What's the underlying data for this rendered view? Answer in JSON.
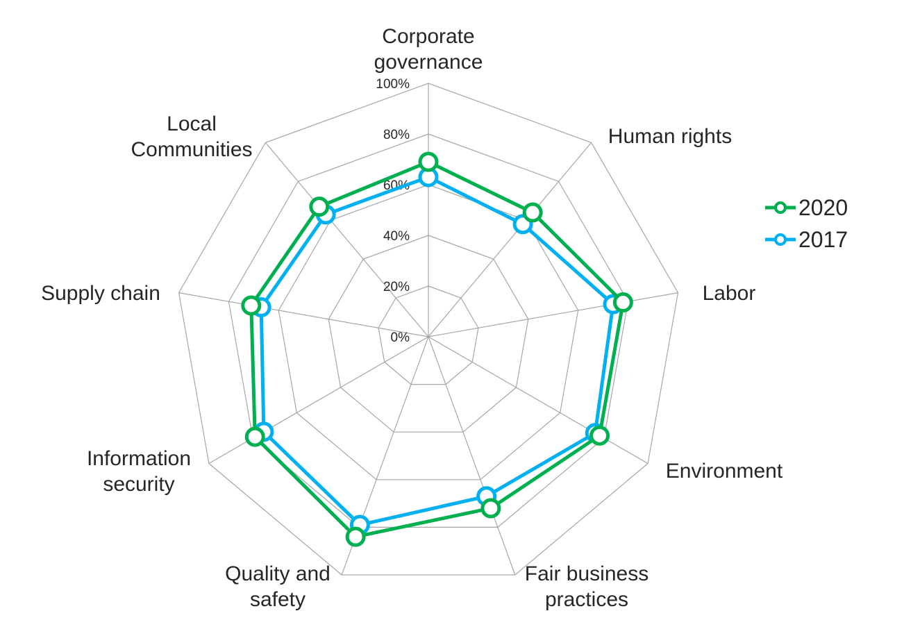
{
  "chart_data": {
    "type": "radar",
    "title": "",
    "categories": [
      "Corporate governance",
      "Human rights",
      "Labor",
      "Environment",
      "Fair business practices",
      "Quality and safety",
      "Information security",
      "Supply chain",
      "Local Communities"
    ],
    "category_label_lines": [
      [
        "Corporate",
        "governance"
      ],
      [
        "Human rights"
      ],
      [
        "Labor"
      ],
      [
        "Environment"
      ],
      [
        "Fair business",
        "practices"
      ],
      [
        "Quality and",
        "safety"
      ],
      [
        "Information",
        "security"
      ],
      [
        "Supply chain"
      ],
      [
        "Local",
        "Communities"
      ]
    ],
    "series": [
      {
        "name": "2020",
        "color": "#00B050",
        "values": [
          69,
          64,
          78,
          78,
          72,
          84,
          79,
          71,
          67
        ]
      },
      {
        "name": "2017",
        "color": "#00B0F0",
        "values": [
          63,
          58,
          74,
          76,
          67,
          79,
          75,
          67,
          63
        ]
      }
    ],
    "rlim": [
      0,
      100
    ],
    "rticks": [
      0,
      20,
      40,
      60,
      80,
      100
    ],
    "rtick_labels": [
      "0%",
      "20%",
      "40%",
      "60%",
      "80%",
      "100%"
    ],
    "grid": true,
    "grid_color": "#A6A6A6",
    "legend_position": "right"
  },
  "legend": {
    "items": [
      {
        "label": "2020",
        "color": "#00B050"
      },
      {
        "label": "2017",
        "color": "#00B0F0"
      }
    ]
  }
}
